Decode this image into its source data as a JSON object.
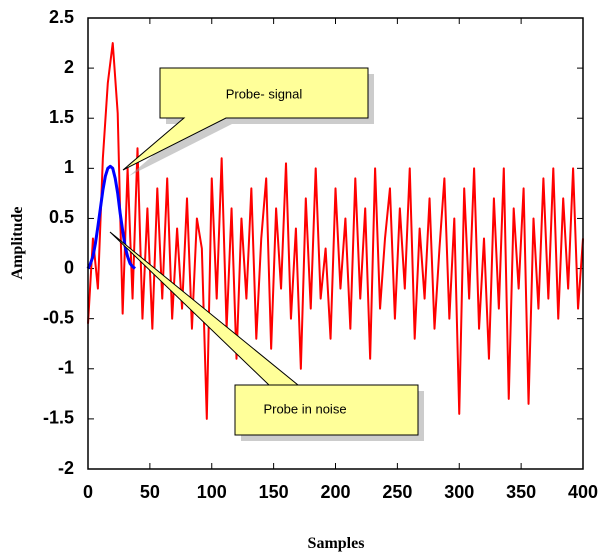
{
  "chart_data": {
    "type": "line",
    "x_label": "Samples",
    "y_label": "Amplitude",
    "annotations": [
      "Probe- signal",
      "Probe in noise"
    ],
    "xlim": [
      0,
      400
    ],
    "xticks": [
      0,
      50,
      100,
      150,
      200,
      250,
      300,
      350,
      400
    ],
    "ylim": [
      -2,
      2.5
    ],
    "yticks": [
      -2,
      -1.5,
      -1,
      -0.5,
      0,
      0.5,
      1,
      1.5,
      2,
      2.5
    ],
    "series": [
      {
        "color": "#ff0000",
        "x": [
          0,
          4,
          8,
          12,
          16,
          20,
          24,
          28,
          32,
          36,
          40,
          44,
          48,
          52,
          56,
          60,
          64,
          68,
          72,
          76,
          80,
          84,
          88,
          92,
          96,
          100,
          104,
          108,
          112,
          116,
          120,
          124,
          128,
          132,
          136,
          140,
          144,
          148,
          152,
          156,
          160,
          164,
          168,
          172,
          176,
          180,
          184,
          188,
          192,
          196,
          200,
          204,
          208,
          212,
          216,
          220,
          224,
          228,
          232,
          236,
          240,
          244,
          248,
          252,
          256,
          260,
          264,
          268,
          272,
          276,
          280,
          284,
          288,
          292,
          296,
          300,
          304,
          308,
          312,
          316,
          320,
          324,
          328,
          332,
          336,
          340,
          344,
          348,
          352,
          356,
          360,
          364,
          368,
          372,
          376,
          380,
          384,
          388,
          392,
          396,
          400
        ],
        "values": [
          -0.55,
          0.3,
          -0.2,
          1.1,
          1.85,
          2.25,
          1.55,
          -0.45,
          1.0,
          -0.3,
          1.2,
          -0.5,
          0.6,
          -0.6,
          0.8,
          -0.3,
          0.9,
          -0.5,
          0.4,
          -0.4,
          0.7,
          -0.6,
          0.5,
          0.2,
          -1.5,
          0.9,
          -0.3,
          1.1,
          -0.6,
          0.6,
          -0.9,
          0.5,
          -0.3,
          0.8,
          -0.7,
          0.3,
          0.9,
          -0.8,
          0.6,
          -0.2,
          1.05,
          -0.5,
          0.4,
          -1.0,
          0.7,
          -0.4,
          1.0,
          -0.3,
          0.2,
          -0.7,
          0.8,
          -0.2,
          0.5,
          -0.6,
          0.9,
          -0.3,
          0.6,
          -0.9,
          1.0,
          -0.4,
          0.3,
          0.8,
          -0.5,
          0.6,
          -0.2,
          1.0,
          -0.7,
          0.4,
          -0.3,
          0.7,
          -0.6,
          0.2,
          0.9,
          -0.5,
          0.5,
          -1.45,
          0.8,
          -0.3,
          1.0,
          -0.6,
          0.3,
          -0.9,
          0.7,
          -0.4,
          1.0,
          -1.3,
          0.6,
          -0.2,
          0.8,
          -1.35,
          0.5,
          -0.4,
          0.9,
          -0.3,
          1.0,
          -0.5,
          0.7,
          -0.2,
          1.0,
          -0.4,
          0.3
        ]
      },
      {
        "color": "#0000ff",
        "x": [
          0,
          2,
          4,
          6,
          8,
          10,
          12,
          14,
          16,
          18,
          20,
          22,
          24,
          26,
          28,
          30,
          32,
          34,
          36,
          38
        ],
        "values": [
          0,
          0.05,
          0.12,
          0.25,
          0.42,
          0.6,
          0.78,
          0.92,
          1.0,
          1.02,
          1.0,
          0.9,
          0.75,
          0.55,
          0.38,
          0.22,
          0.12,
          0.05,
          0.02,
          0
        ]
      }
    ]
  }
}
